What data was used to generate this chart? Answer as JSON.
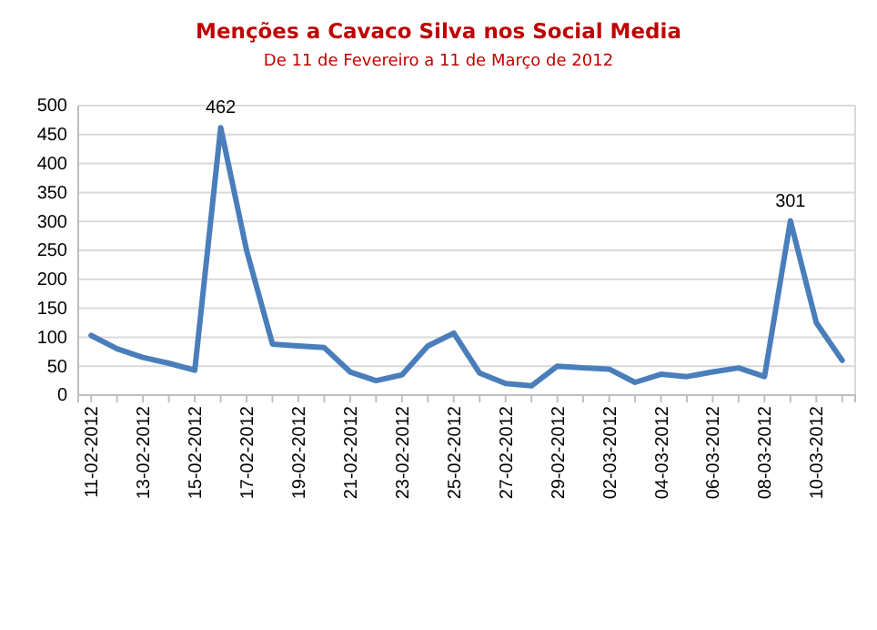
{
  "chart_data": {
    "type": "line",
    "title": "Menções a Cavaco Silva nos Social Media",
    "subtitle": "De 11 de Fevereiro a 11 de Março de 2012",
    "categories": [
      "11-02-2012",
      null,
      "13-02-2012",
      null,
      "15-02-2012",
      null,
      "17-02-2012",
      null,
      "19-02-2012",
      null,
      "21-02-2012",
      null,
      "23-02-2012",
      null,
      "25-02-2012",
      null,
      "27-02-2012",
      null,
      "29-02-2012",
      null,
      "02-03-2012",
      null,
      "04-03-2012",
      null,
      "06-03-2012",
      null,
      "08-03-2012",
      null,
      "10-03-2012",
      null
    ],
    "series": [
      {
        "color": "#4a7ebb",
        "values": [
          103,
          80,
          65,
          55,
          43,
          462,
          250,
          88,
          85,
          82,
          40,
          25,
          35,
          85,
          107,
          38,
          20,
          16,
          50,
          47,
          45,
          22,
          36,
          32,
          40,
          47,
          32,
          301,
          125,
          60
        ],
        "value_labels": [
          null,
          null,
          null,
          null,
          null,
          "462",
          null,
          null,
          null,
          null,
          null,
          null,
          null,
          null,
          null,
          null,
          null,
          null,
          null,
          null,
          null,
          null,
          null,
          null,
          null,
          null,
          null,
          "301",
          null,
          null
        ]
      }
    ],
    "ylim": [
      0,
      500
    ],
    "yticks": [
      0,
      50,
      100,
      150,
      200,
      250,
      300,
      350,
      400,
      450,
      500
    ],
    "grid": "y",
    "marker": "none",
    "line_style": "solid"
  }
}
